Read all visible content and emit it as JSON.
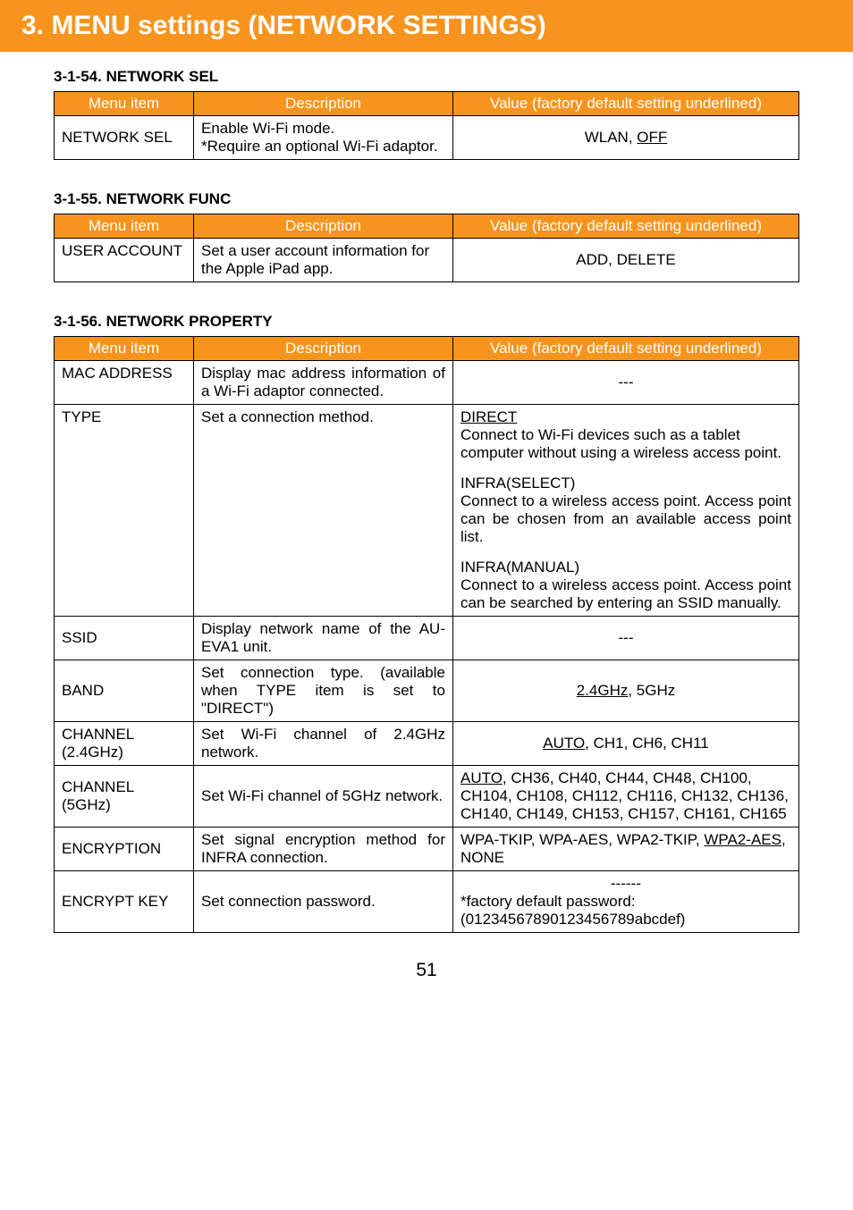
{
  "header": {
    "title": "3. MENU settings (NETWORK SETTINGS)"
  },
  "columns": {
    "menu": "Menu item",
    "desc": "Description",
    "value": "Value (factory default setting underlined)"
  },
  "s54": {
    "heading": "3-1-54. NETWORK SEL",
    "row": {
      "item": "NETWORK SEL",
      "desc_l1": "Enable Wi-Fi mode.",
      "desc_l2": "*Require an optional Wi-Fi adaptor.",
      "val_pre": "WLAN, ",
      "val_u": "OFF"
    }
  },
  "s55": {
    "heading": "3-1-55. NETWORK FUNC",
    "row": {
      "item": "USER ACCOUNT",
      "desc": "Set a user account information for the Apple iPad app.",
      "val": "ADD, DELETE"
    }
  },
  "s56": {
    "heading": "3-1-56. NETWORK PROPERTY",
    "mac": {
      "item": "MAC ADDRESS",
      "desc": "Display mac address information of a Wi-Fi adaptor connected.",
      "val": "---"
    },
    "type": {
      "item": "TYPE",
      "desc": "Set a connection method.",
      "v_direct_u": "DIRECT",
      "v_direct_txt": "Connect to Wi-Fi devices such as a tablet computer without using a wireless access point.",
      "v_infra_sel_h": "INFRA(SELECT)",
      "v_infra_sel_txt": "Connect to a wireless access point. Access point can be chosen from an available access point list.",
      "v_infra_man_h": "INFRA(MANUAL)",
      "v_infra_man_txt": "Connect to a wireless access point. Access point can be searched by entering an SSID manually."
    },
    "ssid": {
      "item": "SSID",
      "desc": "Display network name of the AU-EVA1 unit.",
      "val": "---"
    },
    "band": {
      "item": "BAND",
      "desc": "Set connection type. (available when TYPE item is set to \"DIRECT\")",
      "val_u": "2.4GHz",
      "val_rest": ", 5GHz"
    },
    "ch24": {
      "item": "CHANNEL (2.4GHz)",
      "desc": "Set Wi-Fi channel of 2.4GHz network.",
      "val_u": "AUTO",
      "val_rest": ", CH1, CH6, CH11"
    },
    "ch5": {
      "item": "CHANNEL (5GHz)",
      "desc": "Set Wi-Fi channel of 5GHz network.",
      "val_u": "AUTO",
      "val_rest": ", CH36, CH40, CH44, CH48, CH100, CH104, CH108, CH112, CH116, CH132, CH136, CH140, CH149, CH153, CH157, CH161, CH165"
    },
    "enc": {
      "item": "ENCRYPTION",
      "desc": "Set signal encryption method for INFRA connection.",
      "val_pre": "WPA-TKIP, WPA-AES, WPA2-TKIP, ",
      "val_u": "WPA2-AES",
      "val_post": ", NONE"
    },
    "key": {
      "item": "ENCRYPT KEY",
      "desc": "Set connection password.",
      "val_dash": "------",
      "val_l1": "*factory default password:",
      "val_l2": "(01234567890123456789abcdef)"
    }
  },
  "page": "51"
}
